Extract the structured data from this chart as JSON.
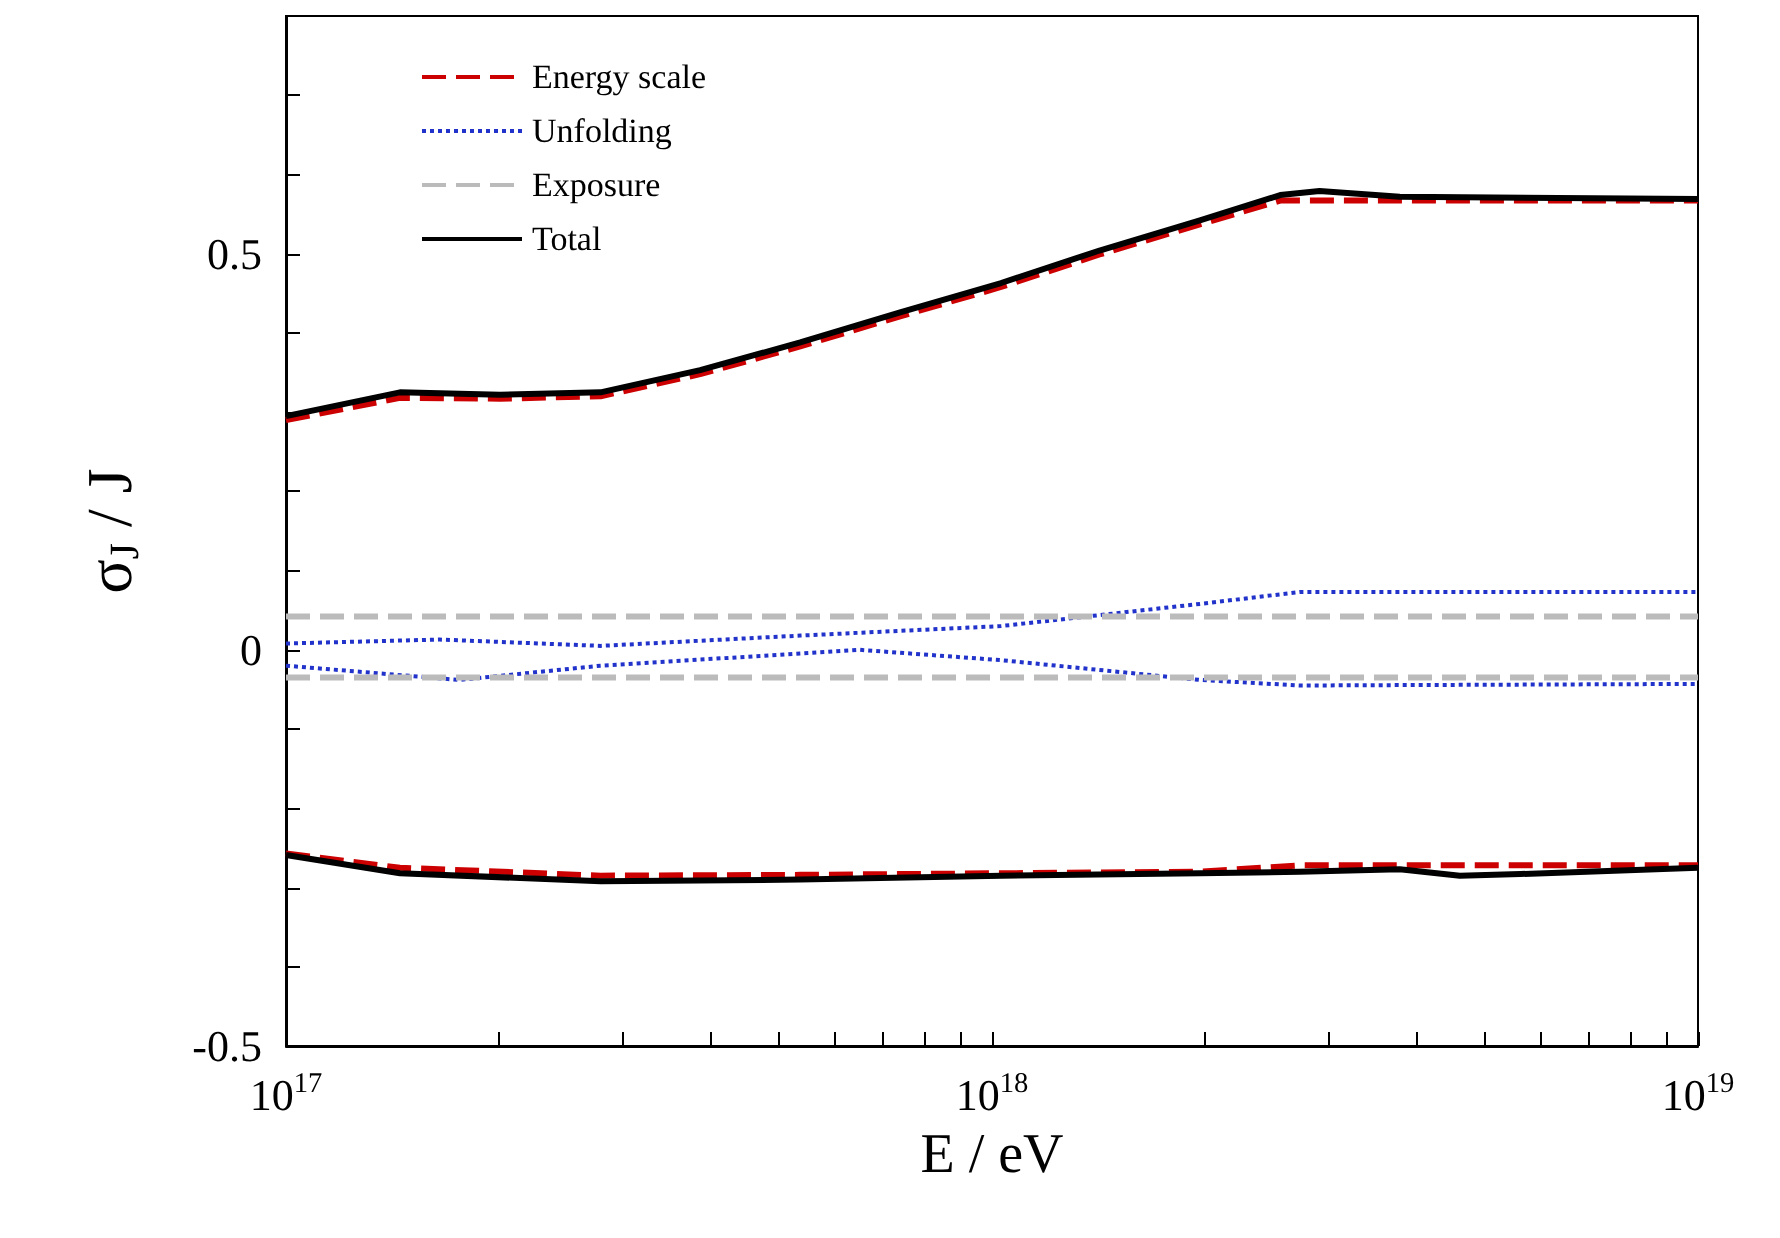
{
  "chart_data": {
    "type": "line",
    "xlabel": "E / eV",
    "ylabel": "σ$_{J}$ / J",
    "log": "x",
    "grid": false,
    "legend": "top left",
    "marker": "none",
    "xlim": [
      1e+17,
      1e+19
    ],
    "xticks": [
      {
        "value": 1e+17,
        "label": "10$^{17}$"
      },
      {
        "value": 2e+17,
        "label": null
      },
      {
        "value": 3e+17,
        "label": null
      },
      {
        "value": 4e+17,
        "label": null
      },
      {
        "value": 5e+17,
        "label": null
      },
      {
        "value": 6e+17,
        "label": null
      },
      {
        "value": 7e+17,
        "label": null
      },
      {
        "value": 8e+17,
        "label": null
      },
      {
        "value": 9e+17,
        "label": null
      },
      {
        "value": 1e+18,
        "label": "10$^{18}$"
      },
      {
        "value": 2e+18,
        "label": null
      },
      {
        "value": 3e+18,
        "label": null
      },
      {
        "value": 4e+18,
        "label": null
      },
      {
        "value": 5e+18,
        "label": null
      },
      {
        "value": 6e+18,
        "label": null
      },
      {
        "value": 7e+18,
        "label": null
      },
      {
        "value": 8e+18,
        "label": null
      },
      {
        "value": 9e+18,
        "label": null
      },
      {
        "value": 1e+19,
        "label": "10$^{19}$"
      }
    ],
    "ylim": [
      -0.5,
      0.8
    ],
    "yticks": [
      {
        "value": -0.5,
        "label": "-0.5"
      },
      {
        "value": -0.4,
        "label": null
      },
      {
        "value": -0.3,
        "label": null
      },
      {
        "value": -0.2,
        "label": null
      },
      {
        "value": -0.1,
        "label": null
      },
      {
        "value": 0,
        "label": "0"
      },
      {
        "value": 0.1,
        "label": null
      },
      {
        "value": 0.2,
        "label": null
      },
      {
        "value": 0.3,
        "label": null
      },
      {
        "value": 0.4,
        "label": null
      },
      {
        "value": 0.5,
        "label": "0.5"
      },
      {
        "value": 0.6,
        "label": null
      },
      {
        "value": 0.7,
        "label": null
      }
    ],
    "series": [
      {
        "name": "Energy scale",
        "color": "#cc0000",
        "line_style": "dashed",
        "x": [
          1e+17,
          1.45e+17,
          2.01e+17,
          2.79e+17,
          3.86e+17,
          5.35e+17,
          7.41e+17,
          1.03e+18,
          1.42e+18,
          1.97e+18,
          2.56e+18,
          2.91e+18,
          3.78e+18,
          1e+19
        ],
        "values": [
          0.29,
          0.318,
          0.317,
          0.32,
          0.348,
          0.383,
          0.421,
          0.458,
          0.499,
          0.537,
          0.567,
          0.567,
          0.567,
          0.567
        ]
      },
      {
        "color": "#cc0000",
        "line_style": "dashed",
        "x": [
          1e+17,
          1.45e+17,
          2.79e+17,
          5.35e+17,
          1.03e+18,
          1.97e+18,
          2.73e+18,
          1e+19
        ],
        "values": [
          -0.257,
          -0.275,
          -0.285,
          -0.284,
          -0.282,
          -0.28,
          -0.272,
          -0.272
        ]
      },
      {
        "name": "Unfolding",
        "color": "#2233cc",
        "line_style": "dotted",
        "x": [
          1e+17,
          1.65e+17,
          2.79e+17,
          5.35e+17,
          1.03e+18,
          1.97e+18,
          2.73e+18,
          1e+19
        ],
        "values": [
          0.008,
          0.013,
          0.005,
          0.018,
          0.03,
          0.058,
          0.073,
          0.073
        ]
      },
      {
        "color": "#2233cc",
        "line_style": "dotted",
        "x": [
          1e+17,
          1.76e+17,
          2.79e+17,
          6.5e+17,
          1.03e+18,
          1.97e+18,
          2.73e+18,
          1e+19
        ],
        "values": [
          -0.02,
          -0.038,
          -0.02,
          0,
          -0.013,
          -0.038,
          -0.045,
          -0.043
        ]
      },
      {
        "name": "Exposure",
        "color": "#bbbbbb",
        "line_style": "dashed",
        "x": [
          1e+17,
          1e+19
        ],
        "values": [
          0.042,
          0.042
        ]
      },
      {
        "color": "#bbbbbb",
        "line_style": "dashed",
        "x": [
          1e+17,
          1e+19
        ],
        "values": [
          -0.035,
          -0.035
        ]
      },
      {
        "name": "Total",
        "color": "#000000",
        "line_style": "solid",
        "x": [
          1e+17,
          1.45e+17,
          2.01e+17,
          2.79e+17,
          3.86e+17,
          5.35e+17,
          7.41e+17,
          1.03e+18,
          1.42e+18,
          1.97e+18,
          2.56e+18,
          2.91e+18,
          3.78e+18,
          1e+19
        ],
        "values": [
          0.295,
          0.325,
          0.322,
          0.325,
          0.353,
          0.388,
          0.426,
          0.463,
          0.504,
          0.542,
          0.574,
          0.579,
          0.572,
          0.569
        ]
      },
      {
        "color": "#000000",
        "line_style": "solid",
        "x": [
          1e+17,
          1.45e+17,
          2.79e+17,
          5.35e+17,
          1.03e+18,
          1.97e+18,
          2.73e+18,
          3.78e+18,
          4.6e+18,
          5.6e+18,
          1e+19
        ],
        "values": [
          -0.259,
          -0.282,
          -0.292,
          -0.29,
          -0.285,
          -0.282,
          -0.28,
          -0.277,
          -0.285,
          -0.283,
          -0.275
        ]
      }
    ]
  }
}
